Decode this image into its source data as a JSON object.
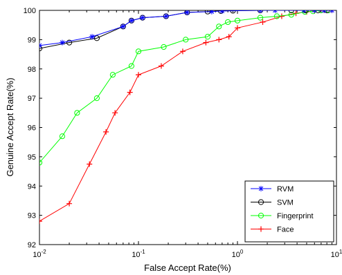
{
  "chart_data": {
    "type": "line",
    "title": "",
    "xlabel": "False Accept Rate(%)",
    "ylabel": "Genuine Accept Rate(%)",
    "xscale": "log",
    "xlim": [
      0.01,
      10
    ],
    "ylim": [
      92,
      100
    ],
    "x_ticks": [
      0.01,
      0.1,
      1,
      10
    ],
    "x_tick_labels": [
      {
        "base": "10",
        "exp": "-2"
      },
      {
        "base": "10",
        "exp": "-1"
      },
      {
        "base": "10",
        "exp": "0"
      },
      {
        "base": "10",
        "exp": "1"
      }
    ],
    "y_ticks": [
      92,
      93,
      94,
      95,
      96,
      97,
      98,
      99,
      100
    ],
    "y_tick_labels": [
      "92",
      "93",
      "94",
      "95",
      "96",
      "97",
      "98",
      "99",
      "100"
    ],
    "grid": false,
    "legend_position": "bottom-right",
    "series": [
      {
        "name": "RVM",
        "color": "#0000ff",
        "marker": "asterisk",
        "x": [
          0.01,
          0.017,
          0.034,
          0.07,
          0.085,
          0.11,
          0.19,
          0.31,
          0.55,
          0.7,
          1.7,
          2.4,
          4.7,
          6.0,
          7.5,
          9.0
        ],
        "y": [
          98.8,
          98.9,
          99.1,
          99.45,
          99.65,
          99.75,
          99.8,
          99.93,
          99.96,
          99.98,
          100,
          100,
          100,
          100,
          100,
          100
        ]
      },
      {
        "name": "SVM",
        "color": "#000000",
        "marker": "circle",
        "x": [
          0.01,
          0.02,
          0.038,
          0.07,
          0.085,
          0.11,
          0.19,
          0.31,
          0.5,
          0.68,
          0.9,
          1.7,
          3.5,
          4.9,
          6.5,
          8.0
        ],
        "y": [
          98.7,
          98.9,
          99.05,
          99.45,
          99.65,
          99.75,
          99.8,
          99.93,
          99.96,
          99.98,
          99.99,
          100,
          100,
          100,
          100,
          100
        ]
      },
      {
        "name": "Fingerprint",
        "color": "#00ff00",
        "marker": "circle",
        "x": [
          0.01,
          0.017,
          0.024,
          0.038,
          0.055,
          0.085,
          0.1,
          0.18,
          0.3,
          0.5,
          0.65,
          0.8,
          1.0,
          1.7,
          2.5,
          3.5,
          4.8,
          5.8,
          7.0,
          8.3
        ],
        "y": [
          94.8,
          95.7,
          96.5,
          97.0,
          97.8,
          98.1,
          98.6,
          98.75,
          99.0,
          99.1,
          99.45,
          99.6,
          99.65,
          99.75,
          99.8,
          99.85,
          99.95,
          99.97,
          100,
          100
        ]
      },
      {
        "name": "Face",
        "color": "#ff0000",
        "marker": "plus",
        "x": [
          0.01,
          0.02,
          0.032,
          0.047,
          0.058,
          0.082,
          0.1,
          0.17,
          0.28,
          0.48,
          0.65,
          0.82,
          1.0,
          1.8,
          2.8,
          3.9,
          5.0,
          6.0,
          7.5,
          9.0
        ],
        "y": [
          92.8,
          93.4,
          94.75,
          95.85,
          96.5,
          97.2,
          97.8,
          98.1,
          98.6,
          98.9,
          99.0,
          99.1,
          99.4,
          99.6,
          99.8,
          99.9,
          99.95,
          99.98,
          100,
          100
        ]
      }
    ]
  }
}
